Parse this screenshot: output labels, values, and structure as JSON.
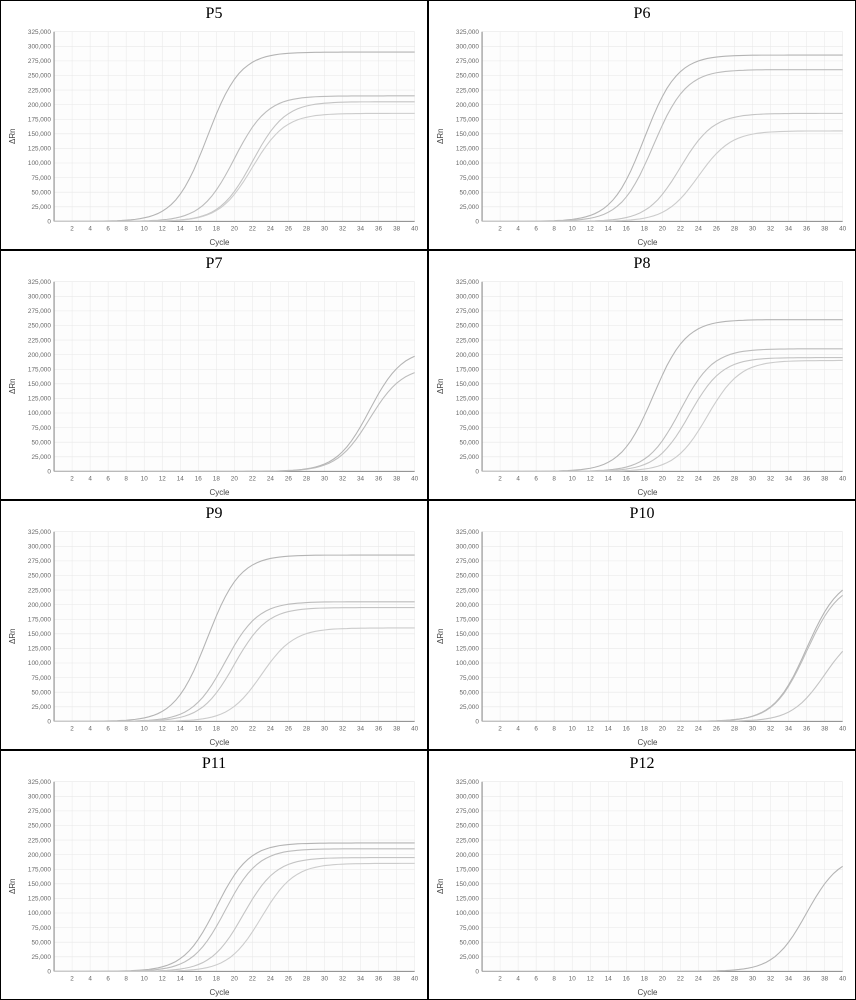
{
  "figure": {
    "cols": 2,
    "rows": 4,
    "cell_border_color": "#000000",
    "background_color": "#ffffff"
  },
  "axes_style": {
    "xlabel": "Cycle",
    "ylabel": "ΔRn",
    "label_fontsize": 8,
    "tick_fontsize": 6,
    "xlim": [
      0,
      40
    ],
    "ylim": [
      0,
      325000
    ],
    "xtick_step": 2,
    "ytick_step": 25000,
    "grid_color": "#e8e8e8",
    "axis_line_color": "#888888",
    "plot_bg": "#fdfdfd"
  },
  "line_style": {
    "stroke_width": 1.0,
    "colors": [
      "#b4b4b4",
      "#bcbcbc",
      "#c4c4c4",
      "#cccccc"
    ]
  },
  "panels": [
    {
      "title": "P5",
      "series": [
        {
          "ct": 12,
          "plateau": 290000
        },
        {
          "ct": 15,
          "plateau": 215000
        },
        {
          "ct": 17,
          "plateau": 205000
        },
        {
          "ct": 17,
          "plateau": 185000
        }
      ]
    },
    {
      "title": "P6",
      "series": [
        {
          "ct": 13,
          "plateau": 285000
        },
        {
          "ct": 14,
          "plateau": 260000
        },
        {
          "ct": 17,
          "plateau": 185000
        },
        {
          "ct": 19,
          "plateau": 155000
        }
      ]
    },
    {
      "title": "P7",
      "series": [
        {
          "ct": 30,
          "plateau": 210000
        },
        {
          "ct": 30,
          "plateau": 180000
        }
      ]
    },
    {
      "title": "P8",
      "series": [
        {
          "ct": 14,
          "plateau": 260000
        },
        {
          "ct": 17,
          "plateau": 210000
        },
        {
          "ct": 18,
          "plateau": 195000
        },
        {
          "ct": 20,
          "plateau": 190000
        }
      ]
    },
    {
      "title": "P9",
      "series": [
        {
          "ct": 12,
          "plateau": 285000
        },
        {
          "ct": 14,
          "plateau": 205000
        },
        {
          "ct": 15,
          "plateau": 195000
        },
        {
          "ct": 18,
          "plateau": 160000
        }
      ]
    },
    {
      "title": "P10",
      "series": [
        {
          "ct": 31,
          "plateau": 250000
        },
        {
          "ct": 31,
          "plateau": 240000
        },
        {
          "ct": 33,
          "plateau": 160000
        }
      ]
    },
    {
      "title": "P11",
      "series": [
        {
          "ct": 13,
          "plateau": 220000
        },
        {
          "ct": 14,
          "plateau": 210000
        },
        {
          "ct": 16,
          "plateau": 195000
        },
        {
          "ct": 18,
          "plateau": 185000
        }
      ]
    },
    {
      "title": "P12",
      "series": [
        {
          "ct": 31,
          "plateau": 200000
        }
      ]
    }
  ]
}
